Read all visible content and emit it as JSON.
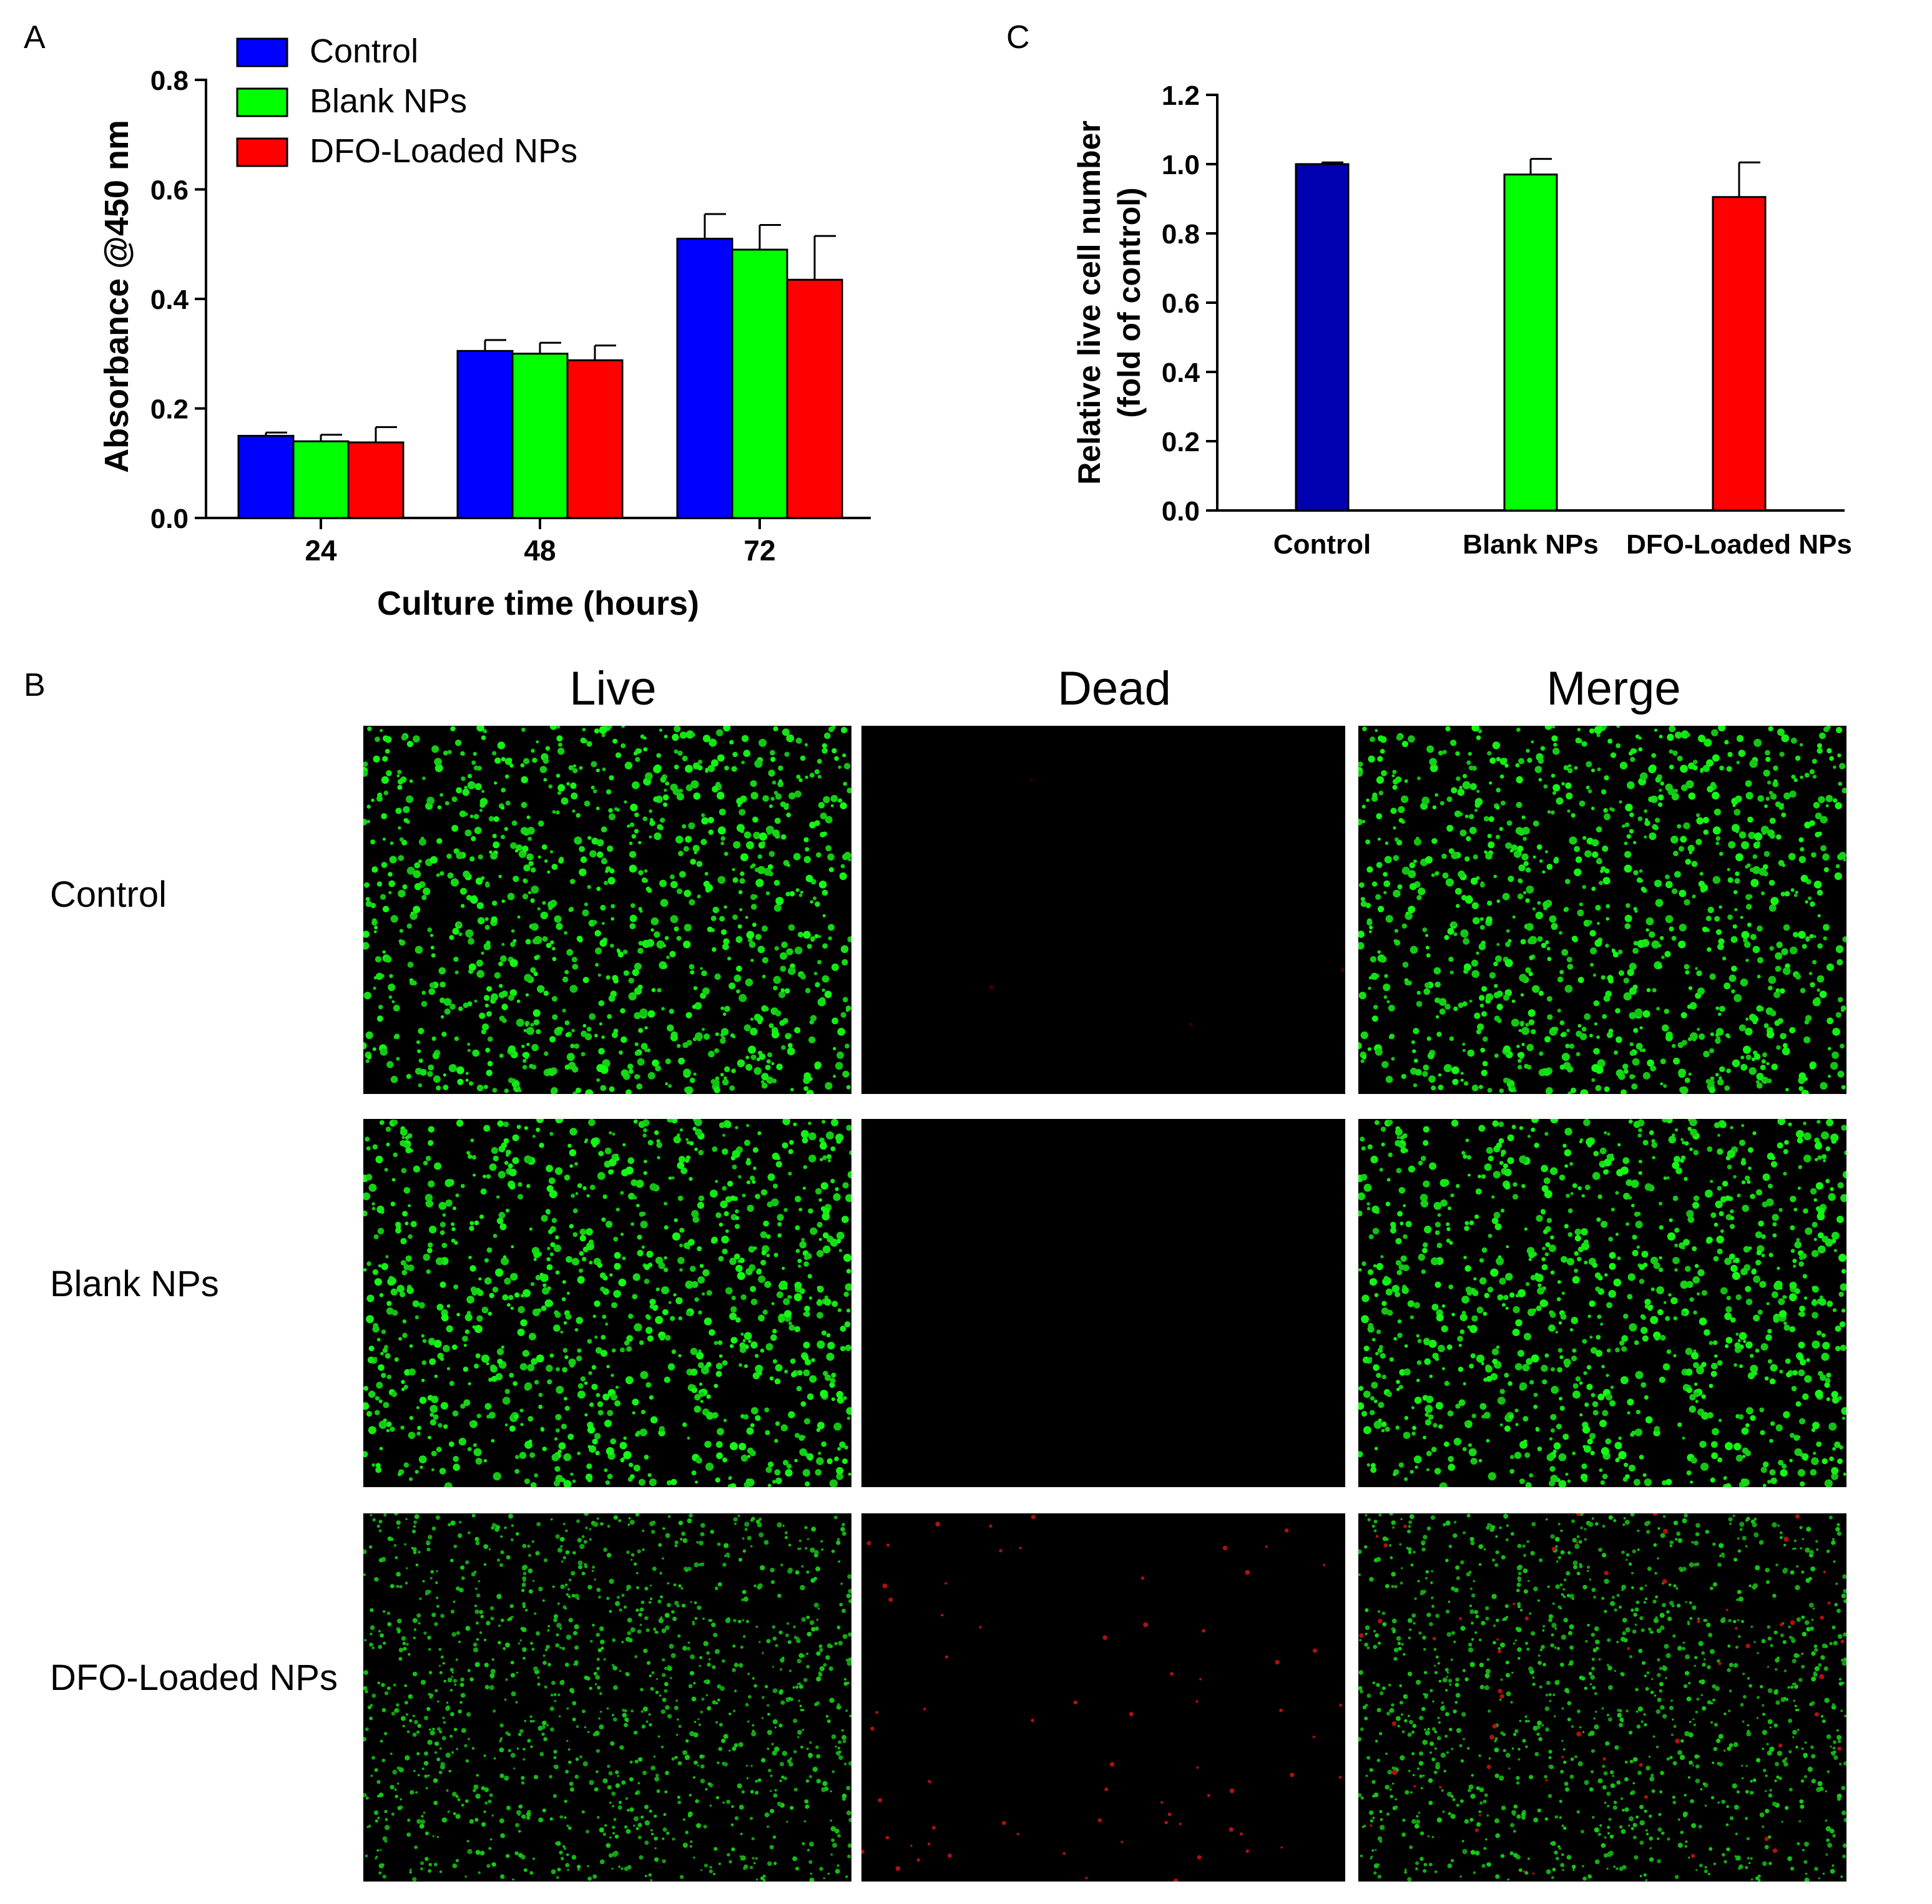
{
  "panels": {
    "a": "A",
    "b": "B",
    "c": "C"
  },
  "colors": {
    "control": "#0000ff",
    "blank": "#00ff00",
    "dfo": "#ff0000",
    "control_c": "#0000b0"
  },
  "chart_data": [
    {
      "type": "bar",
      "panel": "A",
      "categories": [
        "24",
        "48",
        "72"
      ],
      "series": [
        {
          "name": "Control",
          "values": [
            0.15,
            0.305,
            0.51
          ],
          "errors": [
            0.006,
            0.02,
            0.045
          ]
        },
        {
          "name": "Blank NPs",
          "values": [
            0.14,
            0.3,
            0.49
          ],
          "errors": [
            0.012,
            0.02,
            0.045
          ]
        },
        {
          "name": "DFO-Loaded NPs",
          "values": [
            0.138,
            0.288,
            0.435
          ],
          "errors": [
            0.028,
            0.027,
            0.08
          ]
        }
      ],
      "xlabel": "Culture time (hours)",
      "ylabel": "Absorbance @450 nm",
      "ylim": [
        0,
        0.8
      ],
      "yticks": [
        "0.0",
        "0.2",
        "0.4",
        "0.6",
        "0.8"
      ],
      "legend": "top-left",
      "grid": false
    },
    {
      "type": "bar",
      "panel": "C",
      "categories": [
        "Control",
        "Blank NPs",
        "DFO-Loaded NPs"
      ],
      "values": [
        1.0,
        0.97,
        0.905
      ],
      "errors": [
        0.005,
        0.045,
        0.1
      ],
      "ylabel_line1": "Relative live cell number",
      "ylabel_line2": "(fold of control)",
      "ylim": [
        0,
        1.2
      ],
      "yticks": [
        "0.0",
        "0.2",
        "0.4",
        "0.6",
        "0.8",
        "1.0",
        "1.2"
      ],
      "grid": false
    }
  ],
  "micrographs": {
    "columns": [
      "Live",
      "Dead",
      "Merge"
    ],
    "rows": [
      "Control",
      "Blank NPs",
      "DFO-Loaded NPs"
    ]
  }
}
